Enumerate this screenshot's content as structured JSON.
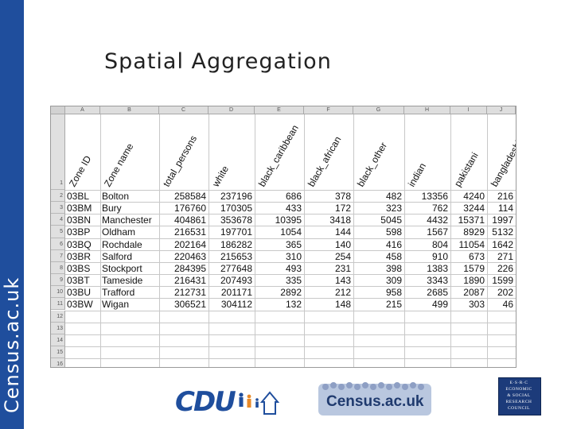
{
  "sidebar": {
    "brand": "Census.ac.uk"
  },
  "slide": {
    "title": "Spatial Aggregation"
  },
  "spreadsheet": {
    "column_letters": [
      "A",
      "B",
      "C",
      "D",
      "E",
      "F",
      "G",
      "H",
      "I",
      "J"
    ],
    "header_row_number": "1",
    "headers": [
      "Zone ID",
      "Zone name",
      "total_persons",
      "white",
      "black_caribbean",
      "black_african",
      "black_other",
      "indian",
      "pakistani",
      "bangladeshi"
    ],
    "rows": [
      {
        "row": "2",
        "zone_id": "03BL",
        "zone_name": "Bolton",
        "total_persons": "258584",
        "white": "237196",
        "black_caribbean": "686",
        "black_african": "378",
        "black_other": "482",
        "indian": "13356",
        "pakistani": "4240",
        "bangladeshi": "216"
      },
      {
        "row": "3",
        "zone_id": "03BM",
        "zone_name": "Bury",
        "total_persons": "176760",
        "white": "170305",
        "black_caribbean": "433",
        "black_african": "172",
        "black_other": "323",
        "indian": "762",
        "pakistani": "3244",
        "bangladeshi": "114"
      },
      {
        "row": "4",
        "zone_id": "03BN",
        "zone_name": "Manchester",
        "total_persons": "404861",
        "white": "353678",
        "black_caribbean": "10395",
        "black_african": "3418",
        "black_other": "5045",
        "indian": "4432",
        "pakistani": "15371",
        "bangladeshi": "1997"
      },
      {
        "row": "5",
        "zone_id": "03BP",
        "zone_name": "Oldham",
        "total_persons": "216531",
        "white": "197701",
        "black_caribbean": "1054",
        "black_african": "144",
        "black_other": "598",
        "indian": "1567",
        "pakistani": "8929",
        "bangladeshi": "5132"
      },
      {
        "row": "6",
        "zone_id": "03BQ",
        "zone_name": "Rochdale",
        "total_persons": "202164",
        "white": "186282",
        "black_caribbean": "365",
        "black_african": "140",
        "black_other": "416",
        "indian": "804",
        "pakistani": "11054",
        "bangladeshi": "1642"
      },
      {
        "row": "7",
        "zone_id": "03BR",
        "zone_name": "Salford",
        "total_persons": "220463",
        "white": "215653",
        "black_caribbean": "310",
        "black_african": "254",
        "black_other": "458",
        "indian": "910",
        "pakistani": "673",
        "bangladeshi": "271"
      },
      {
        "row": "8",
        "zone_id": "03BS",
        "zone_name": "Stockport",
        "total_persons": "284395",
        "white": "277648",
        "black_caribbean": "493",
        "black_african": "231",
        "black_other": "398",
        "indian": "1383",
        "pakistani": "1579",
        "bangladeshi": "226"
      },
      {
        "row": "9",
        "zone_id": "03BT",
        "zone_name": "Tameside",
        "total_persons": "216431",
        "white": "207493",
        "black_caribbean": "335",
        "black_african": "143",
        "black_other": "309",
        "indian": "3343",
        "pakistani": "1890",
        "bangladeshi": "1599"
      },
      {
        "row": "10",
        "zone_id": "03BU",
        "zone_name": "Trafford",
        "total_persons": "212731",
        "white": "201171",
        "black_caribbean": "2892",
        "black_african": "212",
        "black_other": "958",
        "indian": "2685",
        "pakistani": "2087",
        "bangladeshi": "202"
      },
      {
        "row": "11",
        "zone_id": "03BW",
        "zone_name": "Wigan",
        "total_persons": "306521",
        "white": "304112",
        "black_caribbean": "132",
        "black_african": "148",
        "black_other": "215",
        "indian": "499",
        "pakistani": "303",
        "bangladeshi": "46"
      }
    ],
    "empty_row_numbers": [
      "12",
      "13",
      "14",
      "15",
      "16"
    ]
  },
  "footer": {
    "cdu_logo": "CDU",
    "census_logo": "Census.ac.uk",
    "esrc_logo": [
      "E·S·R·C",
      "ECONOMIC",
      "& SOCIAL",
      "RESEARCH",
      "COUNCIL"
    ]
  },
  "colors": {
    "brand_blue": "#1f4e9d",
    "header_gray": "#dedede"
  }
}
